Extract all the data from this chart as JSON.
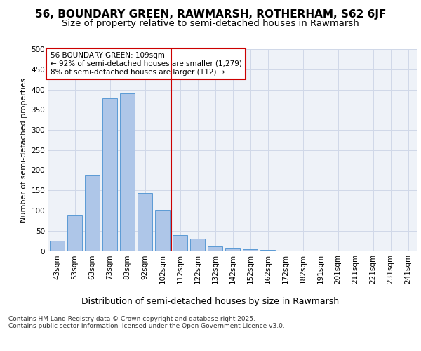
{
  "title1": "56, BOUNDARY GREEN, RAWMARSH, ROTHERHAM, S62 6JF",
  "title2": "Size of property relative to semi-detached houses in Rawmarsh",
  "xlabel": "Distribution of semi-detached houses by size in Rawmarsh",
  "ylabel": "Number of semi-detached properties",
  "categories": [
    "43sqm",
    "53sqm",
    "63sqm",
    "73sqm",
    "83sqm",
    "92sqm",
    "102sqm",
    "112sqm",
    "122sqm",
    "132sqm",
    "142sqm",
    "152sqm",
    "162sqm",
    "172sqm",
    "182sqm",
    "191sqm",
    "201sqm",
    "211sqm",
    "221sqm",
    "231sqm",
    "241sqm"
  ],
  "values": [
    25,
    90,
    188,
    378,
    391,
    143,
    101,
    40,
    30,
    11,
    8,
    5,
    3,
    1,
    0,
    1,
    0,
    0,
    0,
    0,
    0
  ],
  "bar_color": "#aec6e8",
  "bar_edge_color": "#5b9bd5",
  "vline_pos": 6.5,
  "vline_color": "#cc0000",
  "annotation_box_text": "56 BOUNDARY GREEN: 109sqm\n← 92% of semi-detached houses are smaller (1,279)\n8% of semi-detached houses are larger (112) →",
  "annotation_box_color": "#cc0000",
  "ylim": [
    0,
    500
  ],
  "yticks": [
    0,
    50,
    100,
    150,
    200,
    250,
    300,
    350,
    400,
    450,
    500
  ],
  "grid_color": "#d0d8e8",
  "background_color": "#eef2f8",
  "footer_text": "Contains HM Land Registry data © Crown copyright and database right 2025.\nContains public sector information licensed under the Open Government Licence v3.0.",
  "title1_fontsize": 11,
  "title2_fontsize": 9.5,
  "xlabel_fontsize": 9,
  "ylabel_fontsize": 8,
  "tick_fontsize": 7.5,
  "annotation_fontsize": 7.5,
  "footer_fontsize": 6.5
}
